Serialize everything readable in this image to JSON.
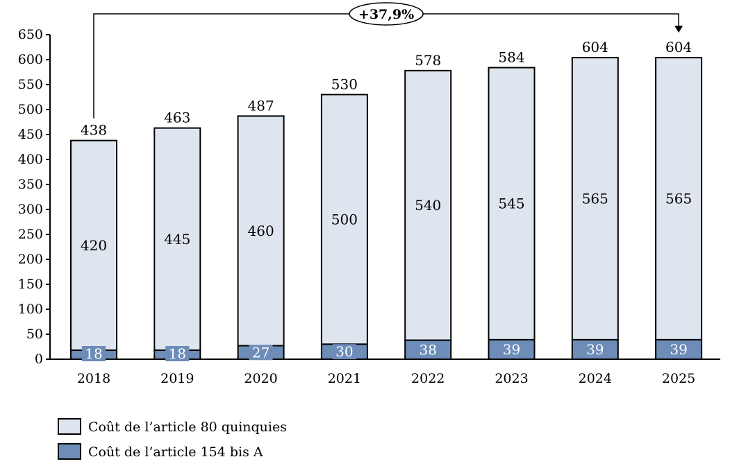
{
  "chart_data": {
    "type": "bar",
    "stacked": true,
    "categories": [
      "2018",
      "2019",
      "2020",
      "2021",
      "2022",
      "2023",
      "2024",
      "2025"
    ],
    "series": [
      {
        "name": "Coût de l’article 154 bis A",
        "values": [
          18,
          18,
          27,
          30,
          38,
          39,
          39,
          39
        ],
        "color": "#6d8cb8"
      },
      {
        "name": "Coût de l’article 80 quinquies",
        "values": [
          420,
          445,
          460,
          500,
          540,
          545,
          565,
          565
        ],
        "color": "#dee5ef"
      }
    ],
    "totals": [
      438,
      463,
      487,
      530,
      578,
      584,
      604,
      604
    ],
    "ylim": [
      0,
      650
    ],
    "yticks": [
      0,
      50,
      100,
      150,
      200,
      250,
      300,
      350,
      400,
      450,
      500,
      550,
      600,
      650
    ],
    "grid": false,
    "legend_position": "bottom-left",
    "annotation": {
      "text": "+37,9%",
      "from": "2018",
      "to": "2025"
    }
  }
}
